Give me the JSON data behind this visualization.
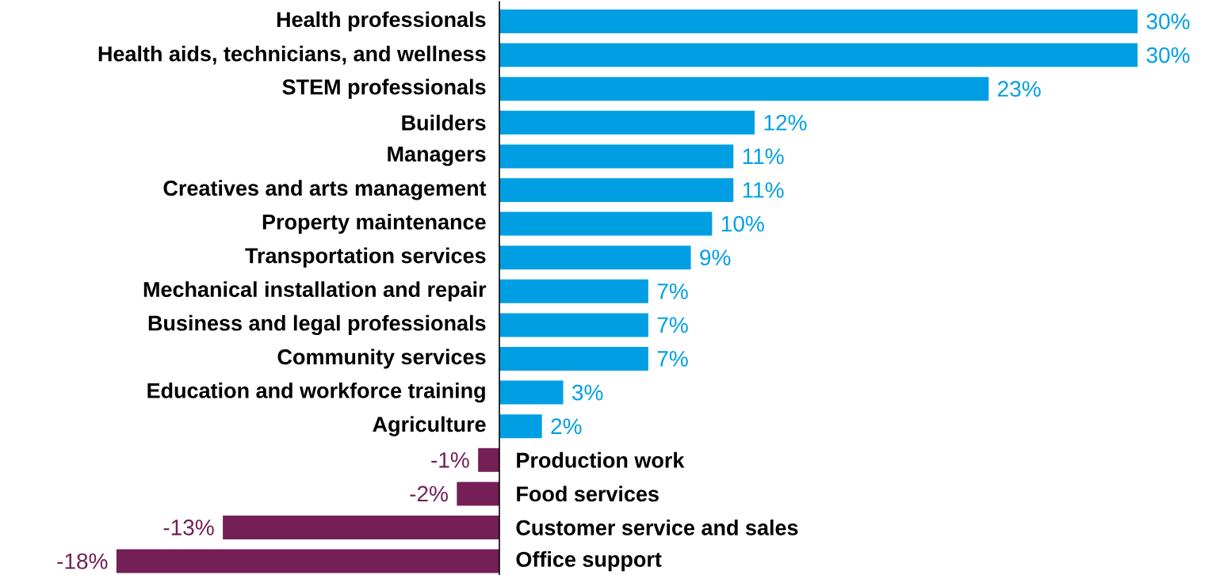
{
  "chart_data": {
    "type": "bar",
    "orientation": "horizontal",
    "categories": [
      "Health professionals",
      "Health aids, technicians, and wellness",
      "STEM professionals",
      "Builders",
      "Managers",
      "Creatives and arts management",
      "Property maintenance",
      "Transportation services",
      "Mechanical installation and repair",
      "Business and legal professionals",
      "Community services",
      "Education and workforce training",
      "Agriculture",
      "Production work",
      "Food services",
      "Customer service and sales",
      "Office support"
    ],
    "values": [
      30,
      30,
      23,
      12,
      11,
      11,
      10,
      9,
      7,
      7,
      7,
      3,
      2,
      -1,
      -2,
      -13,
      -18
    ],
    "value_labels": [
      "30%",
      "30%",
      "23%",
      "12%",
      "11%",
      "11%",
      "10%",
      "9%",
      "7%",
      "7%",
      "7%",
      "3%",
      "2%",
      "-1%",
      "-2%",
      "-13%",
      "-18%"
    ],
    "colors": [
      "#009fe3",
      "#009fe3",
      "#009fe3",
      "#009fe3",
      "#009fe3",
      "#009fe3",
      "#009fe3",
      "#009fe3",
      "#009fe3",
      "#009fe3",
      "#009fe3",
      "#009fe3",
      "#009fe3",
      "#741f56",
      "#741f56",
      "#741f56",
      "#741f56"
    ]
  }
}
